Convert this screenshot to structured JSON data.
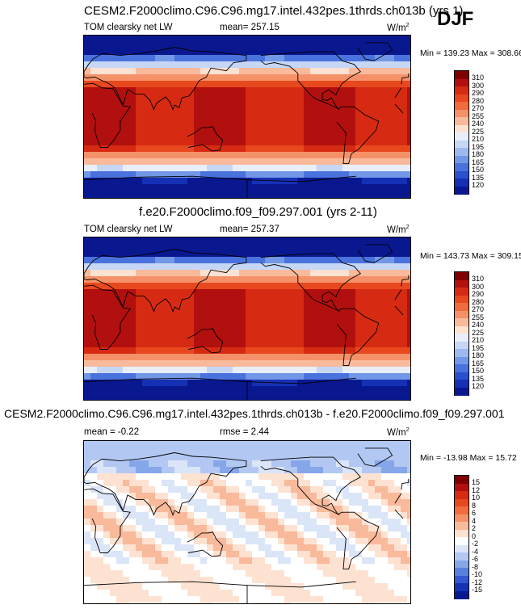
{
  "season_label": "DJF",
  "panels": [
    {
      "title": "CESM2.F2000climo.C96.C96.mg17.intel.432pes.1thrds.ch013b (yrs 1)",
      "field": "TOM clearsky net LW",
      "stat1": "mean= 257.15",
      "stat2": "",
      "units": "W/m",
      "units_sup": "2",
      "minmax": "Min = 139.23 Max = 308.66",
      "colorbar": {
        "levels": [
          "310",
          "300",
          "290",
          "280",
          "270",
          "255",
          "240",
          "225",
          "210",
          "195",
          "180",
          "165",
          "150",
          "135",
          "120"
        ],
        "colors": [
          "#7f0000",
          "#b2100e",
          "#d62b12",
          "#e8481e",
          "#f06c3c",
          "#f59168",
          "#f9b99b",
          "#fde2d2",
          "#e8eefa",
          "#c6d6f5",
          "#9db9ee",
          "#7297e6",
          "#4a72dc",
          "#2a4fcf",
          "#1530b5",
          "#0a1890"
        ]
      }
    },
    {
      "title": "f.e20.F2000climo.f09_f09.297.001 (yrs 2-11)",
      "field": "TOM clearsky net LW",
      "stat1": "mean= 257.37",
      "stat2": "",
      "units": "W/m",
      "units_sup": "2",
      "minmax": "Min = 143.73 Max = 309.15",
      "colorbar": {
        "levels": [
          "310",
          "300",
          "290",
          "280",
          "270",
          "255",
          "240",
          "225",
          "210",
          "195",
          "180",
          "165",
          "150",
          "135",
          "120"
        ],
        "colors": [
          "#7f0000",
          "#b2100e",
          "#d62b12",
          "#e8481e",
          "#f06c3c",
          "#f59168",
          "#f9b99b",
          "#fde2d2",
          "#e8eefa",
          "#c6d6f5",
          "#9db9ee",
          "#7297e6",
          "#4a72dc",
          "#2a4fcf",
          "#1530b5",
          "#0a1890"
        ]
      }
    },
    {
      "title": "CESM2.F2000climo.C96.C96.mg17.intel.432pes.1thrds.ch013b - f.e20.F2000climo.f09_f09.297.001",
      "field": "",
      "stat1": "mean = -0.22",
      "stat2": "rmse = 2.44",
      "units": "W/m",
      "units_sup": "2",
      "minmax": "Min = -13.98 Max = 15.72",
      "colorbar": {
        "levels": [
          "15",
          "12",
          "10",
          "8",
          "6",
          "4",
          "2",
          "0",
          "-2",
          "-4",
          "-6",
          "-8",
          "-10",
          "-12",
          "-15"
        ],
        "colors": [
          "#7f0000",
          "#b2100e",
          "#d62b12",
          "#e8481e",
          "#f06c3c",
          "#f59168",
          "#f9b99b",
          "#fde2d2",
          "#ffffff",
          "#dbe5f8",
          "#b2c8f2",
          "#86a6ea",
          "#5a80df",
          "#3358d2",
          "#1733b4",
          "#0a1890"
        ]
      }
    }
  ]
}
